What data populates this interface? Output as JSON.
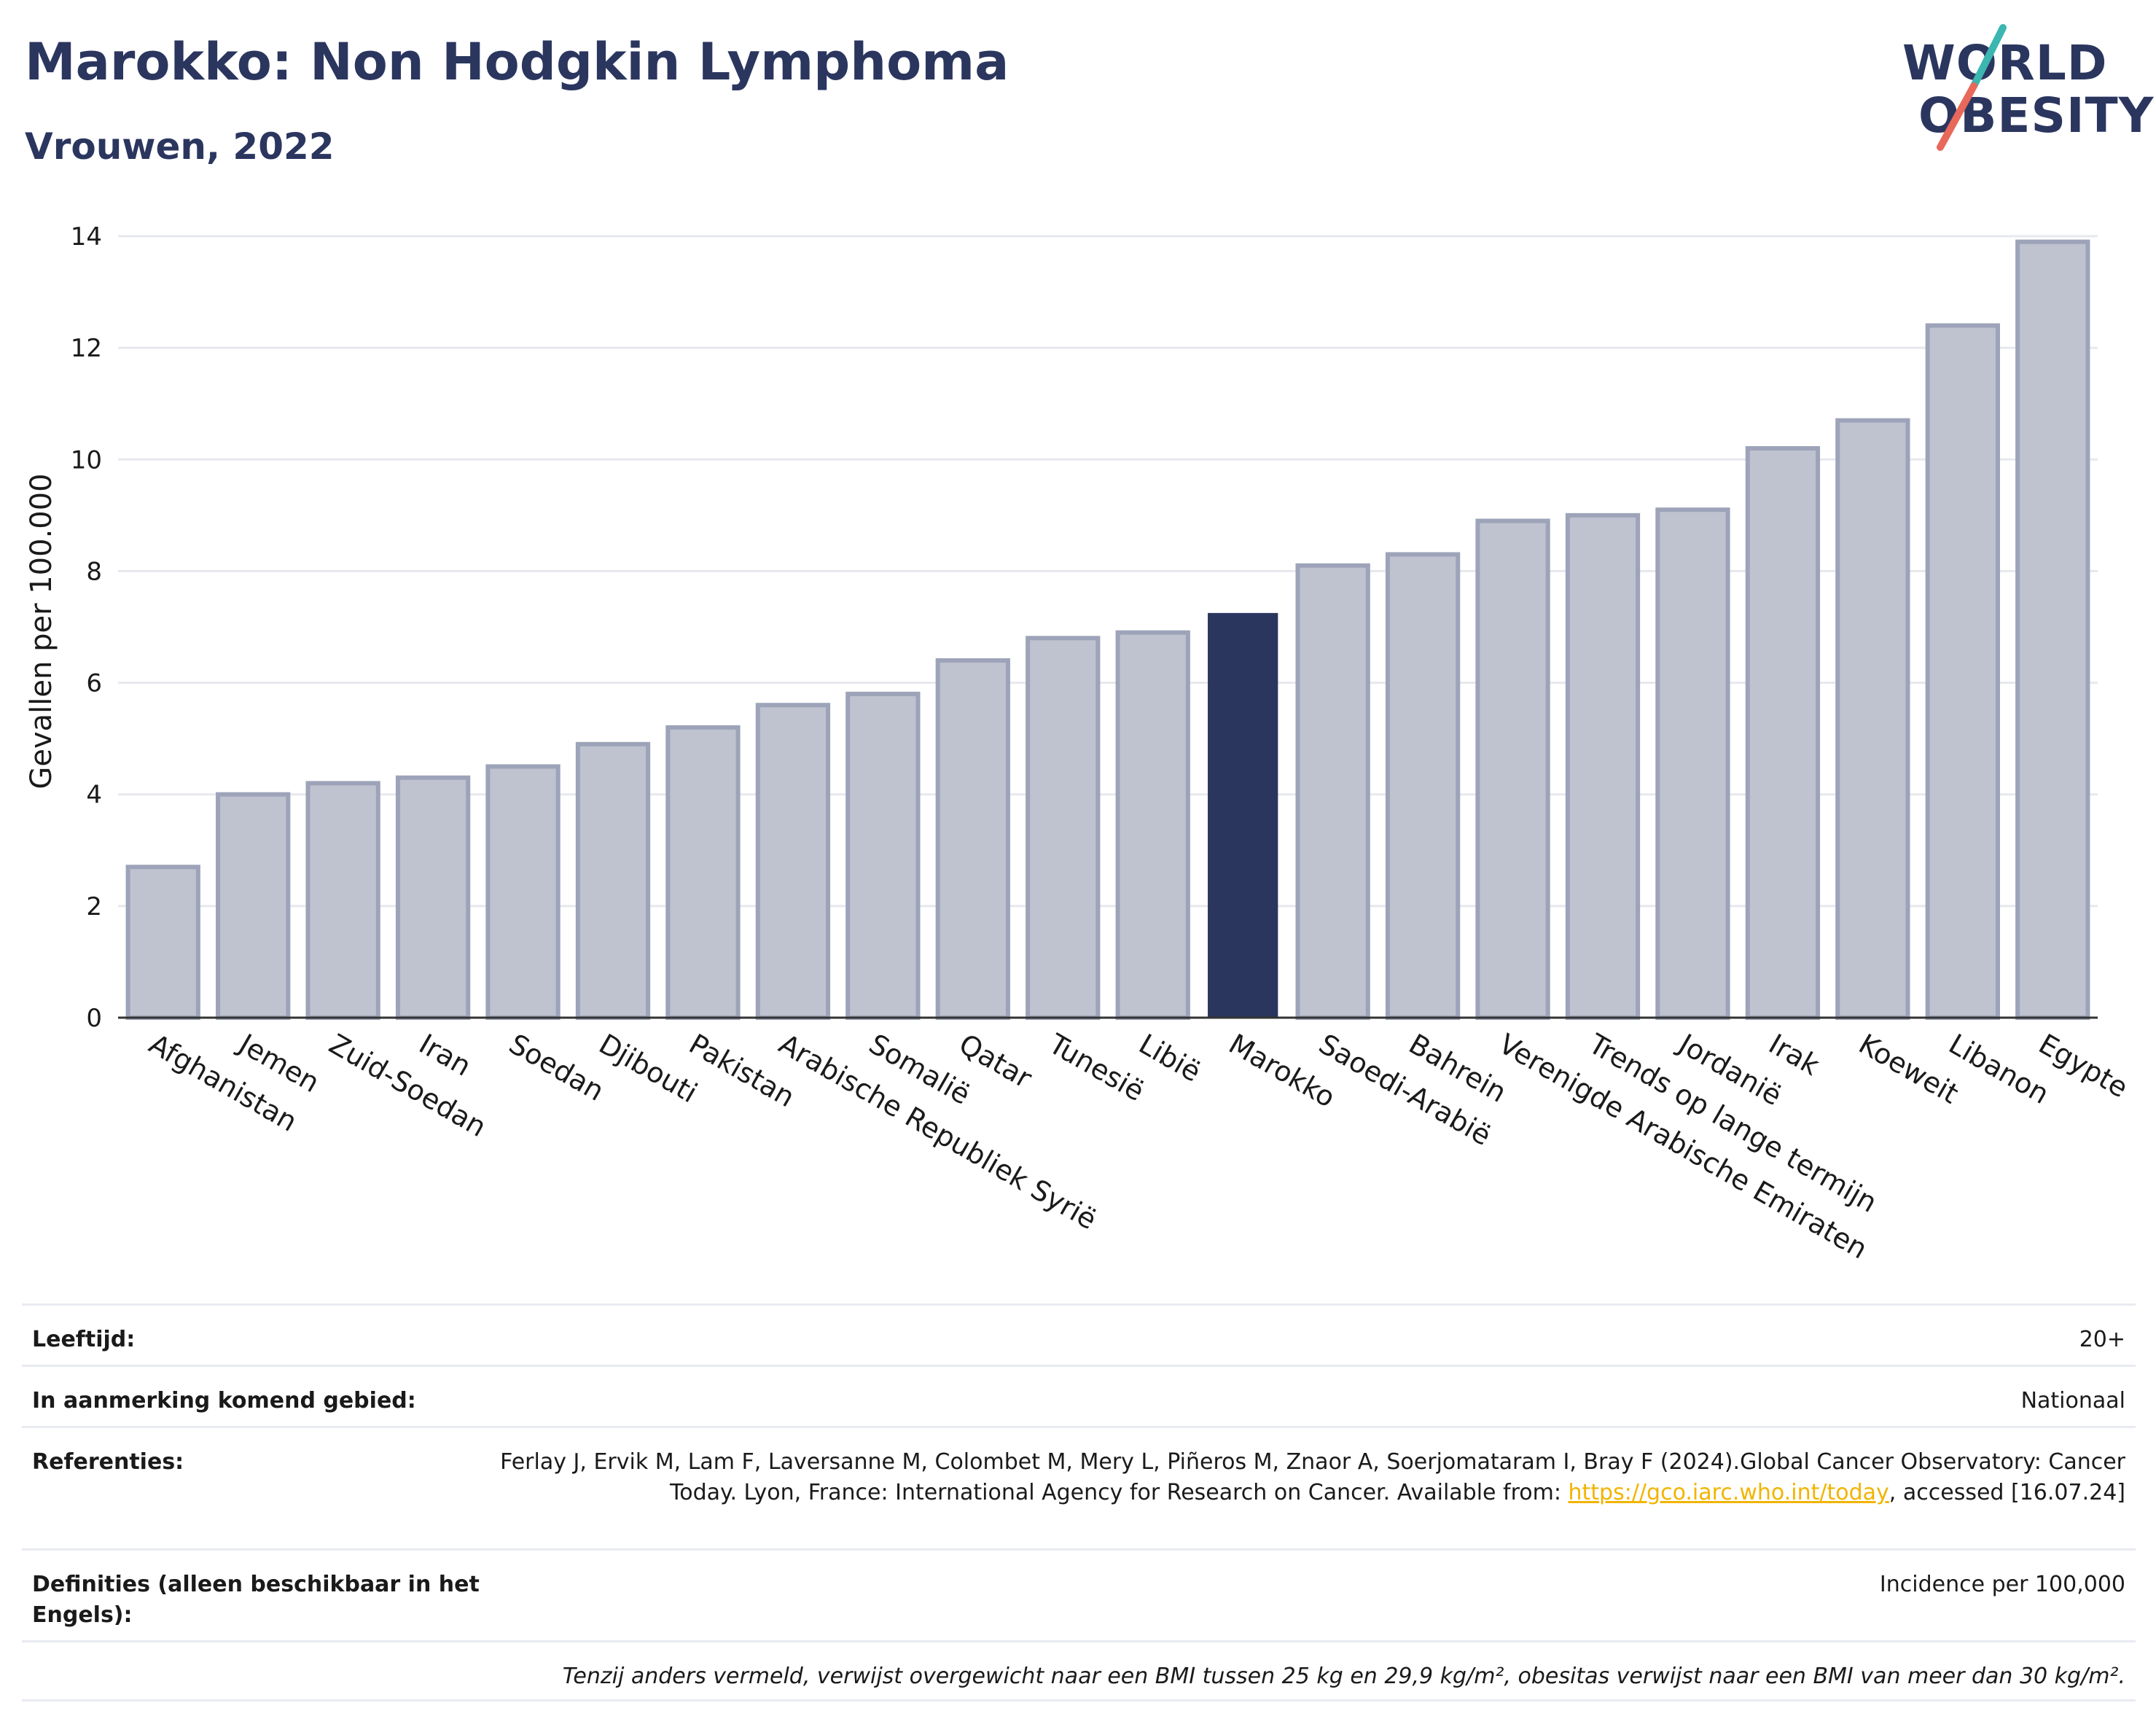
{
  "header": {
    "title": "Marokko: Non Hodgkin Lymphoma",
    "subtitle": "Vrouwen, 2022"
  },
  "logo": {
    "line1": "WORLD",
    "line2": "OBESITY",
    "colors": {
      "text": "#2b365f",
      "slash_top": "#3bb6b0",
      "slash_bottom": "#e8685a"
    }
  },
  "chart_data": {
    "type": "bar",
    "title": "",
    "xlabel": "",
    "ylabel": "Gevallen per 100.000",
    "ylim": [
      0,
      14
    ],
    "yticks": [
      0,
      2,
      4,
      6,
      8,
      10,
      12,
      14
    ],
    "grid": true,
    "highlight": "Marokko",
    "colors": {
      "bar": "#bfc2cf",
      "bar_edge": "#9da3b8",
      "highlight": "#2b365f",
      "grid": "#e6e8ee"
    },
    "categories": [
      "Afghanistan",
      "Jemen",
      "Zuid-Soedan",
      "Iran",
      "Soedan",
      "Djibouti",
      "Pakistan",
      "Arabische Republiek Syrië",
      "Somalië",
      "Qatar",
      "Tunesië",
      "Libië",
      "Marokko",
      "Saoedi-Arabië",
      "Bahrein",
      "Verenigde Arabische Emiraten",
      "Trends op lange termijn",
      "Jordanië",
      "Irak",
      "Koeweit",
      "Libanon",
      "Egypte"
    ],
    "values": [
      2.7,
      4.0,
      4.2,
      4.3,
      4.5,
      4.9,
      5.2,
      5.6,
      5.8,
      6.4,
      6.8,
      6.9,
      7.25,
      8.1,
      8.3,
      8.9,
      9.0,
      9.1,
      10.2,
      10.7,
      12.4,
      13.9
    ]
  },
  "info": {
    "age_label": "Leeftijd:",
    "age_value": "20+",
    "area_label": "In aanmerking komend gebied:",
    "area_value": "Nationaal",
    "refs_label": "Referenties:",
    "refs_text_before": "Ferlay J, Ervik M, Lam F, Laversanne M, Colombet M, Mery L, Piñeros M, Znaor A, Soerjomataram I, Bray F (2024).Global Cancer Observatory: Cancer Today. Lyon, France: International Agency for Research on Cancer. Available from: ",
    "refs_link": "https://gco.iarc.who.int/today",
    "refs_text_after": ", accessed [16.07.24]",
    "defs_label": "Definities (alleen beschikbaar in het Engels):",
    "defs_value": "Incidence per 100,000",
    "note": "Tenzij anders vermeld, verwijst overgewicht naar een BMI tussen 25 kg en 29,9 kg/m², obesitas verwijst naar een BMI van meer dan 30 kg/m²."
  }
}
